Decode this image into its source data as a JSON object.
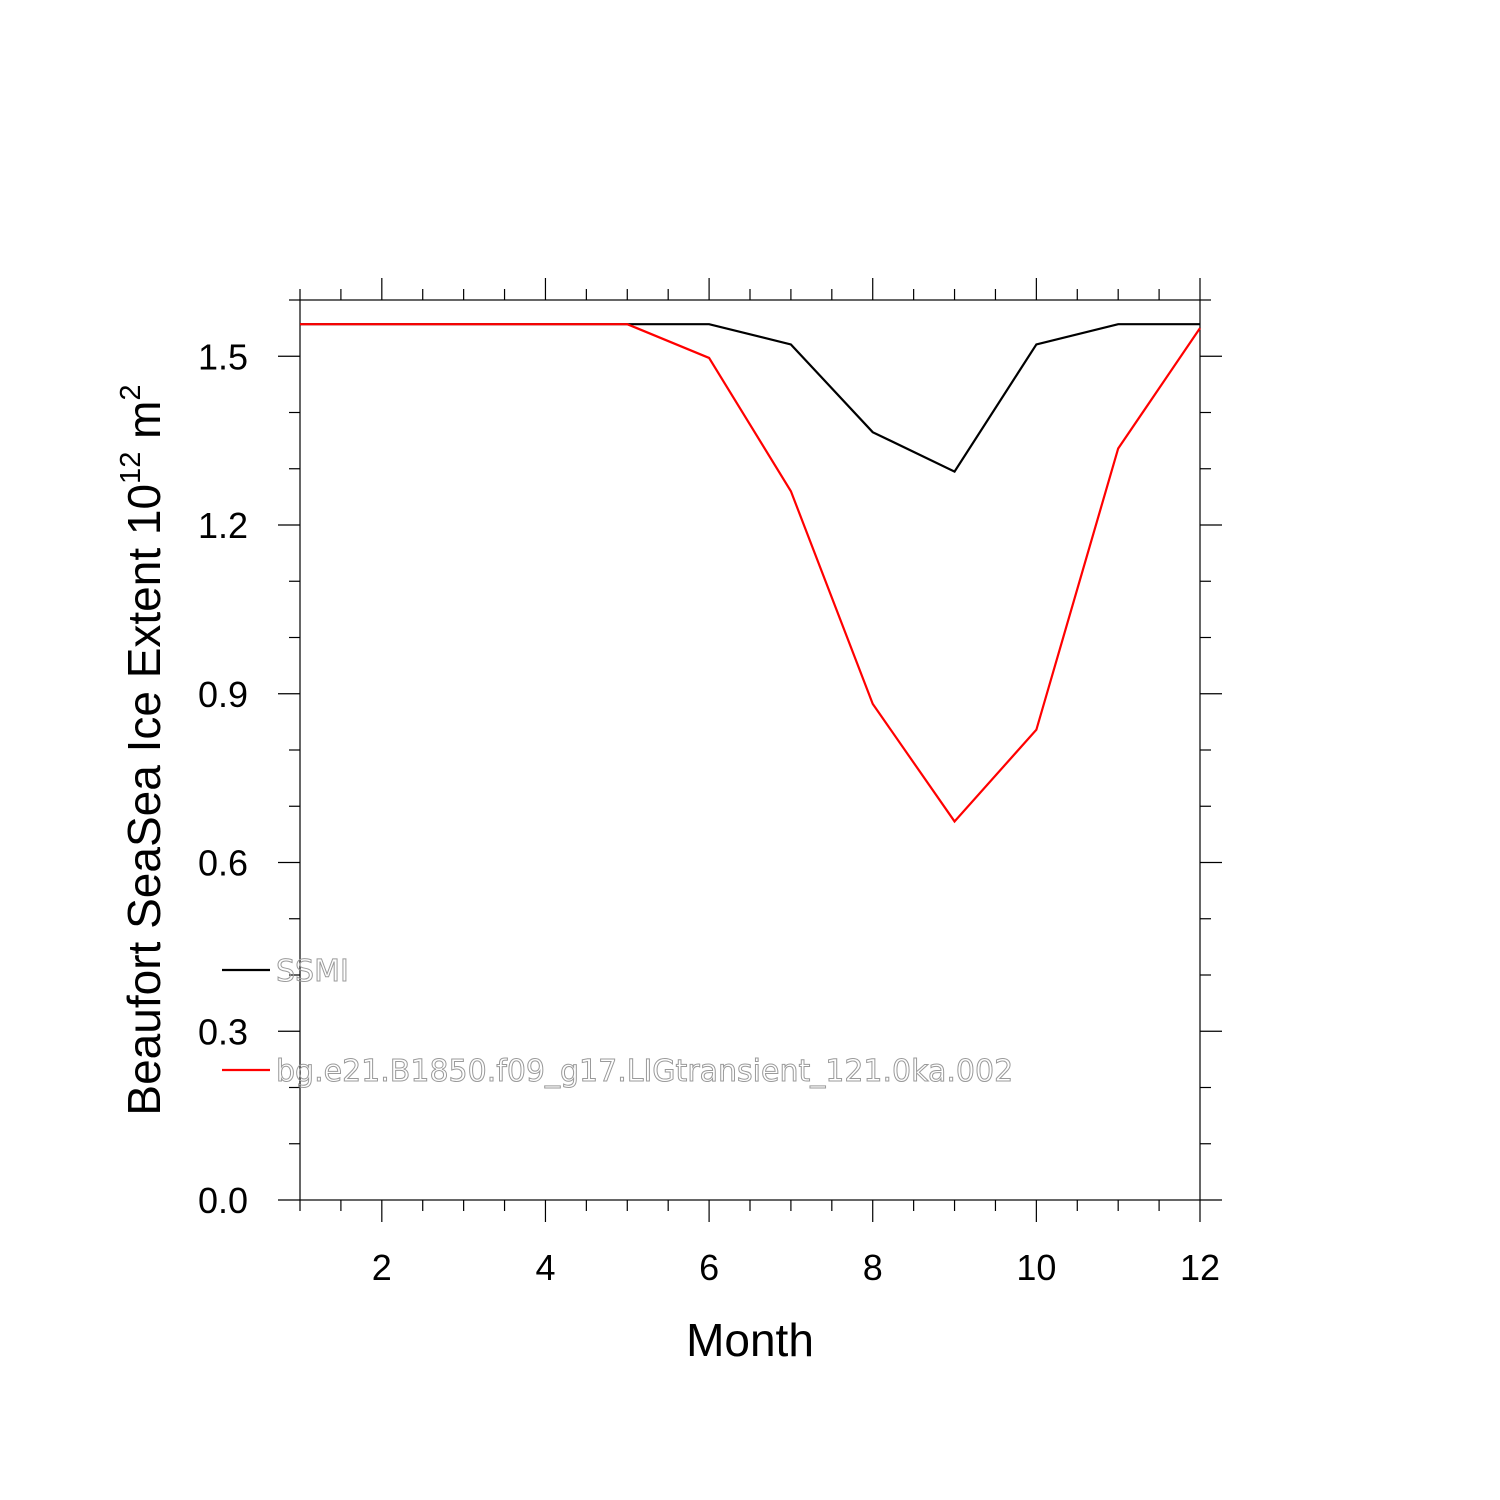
{
  "chart_data": {
    "type": "line",
    "xlabel": "Month",
    "ylabel": {
      "prefix": "Beaufort SeaSea Ice Extent 10",
      "exponent1": "12",
      "unit": " m",
      "exponent2": "2"
    },
    "xlim": [
      1,
      12
    ],
    "ylim": [
      0,
      1.6
    ],
    "x_ticks": [
      2,
      4,
      6,
      8,
      10,
      12
    ],
    "x_tick_labels": [
      "2",
      "4",
      "6",
      "8",
      "10",
      "12"
    ],
    "y_ticks": [
      0.0,
      0.3,
      0.6,
      0.9,
      1.2,
      1.5
    ],
    "y_tick_labels": [
      "0.0",
      "0.3",
      "0.6",
      "0.9",
      "1.2",
      "1.5"
    ],
    "x": [
      1,
      2,
      3,
      4,
      5,
      6,
      7,
      8,
      9,
      10,
      11,
      12
    ],
    "series": [
      {
        "name": "SSMI",
        "color": "#000000",
        "values": [
          1.557,
          1.557,
          1.557,
          1.557,
          1.557,
          1.557,
          1.521,
          1.365,
          1.295,
          1.521,
          1.557,
          1.557
        ]
      },
      {
        "name": "bg.e21.B1850.f09_g17.LIGtransient_121.0ka.002",
        "color": "#ff0000",
        "values": [
          1.557,
          1.557,
          1.557,
          1.557,
          1.557,
          1.497,
          1.26,
          0.882,
          0.673,
          0.836,
          1.336,
          1.55
        ]
      }
    ],
    "legend_position": "lower-left",
    "grid": false
  }
}
